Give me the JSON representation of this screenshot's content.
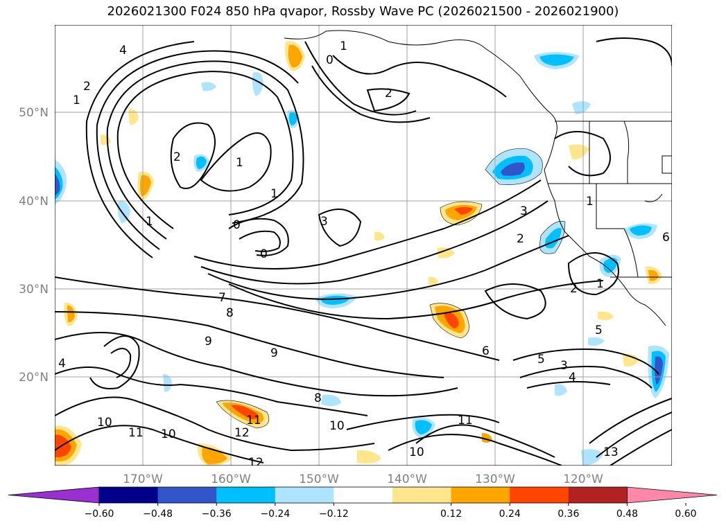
{
  "title": "2026021300 F024 850 hPa qvapor, Rossby Wave PC (2026021500 - 2026021900)",
  "lat_labels": [
    "50°N",
    "40°N",
    "30°N",
    "20°N"
  ],
  "lon_labels": [
    "170°W",
    "160°W",
    "150°W",
    "140°W",
    "130°W",
    "120°W"
  ],
  "colorbar": {
    "ticks": [
      "−0.60",
      "−0.48",
      "−0.36",
      "−0.24",
      "−0.12",
      "0.12",
      "0.24",
      "0.36",
      "0.48",
      "0.60"
    ],
    "colors": [
      "#9b30d0",
      "#00008b",
      "#3355cc",
      "#00bfff",
      "#aee4ff",
      "#ffffff",
      "#ffe68c",
      "#ffa500",
      "#ff4500",
      "#b22222",
      "#ff88aa"
    ]
  },
  "contour_labels": [
    "1",
    "2",
    "4",
    "0",
    "1",
    "2",
    "2",
    "1",
    "1",
    "1",
    "0",
    "0",
    "3",
    "3",
    "2",
    "1",
    "2",
    "5",
    "3",
    "4",
    "5",
    "7",
    "8",
    "9",
    "9",
    "8",
    "10",
    "10",
    "11",
    "11",
    "12",
    "12",
    "13",
    "10",
    "10",
    "11",
    "6",
    "6",
    "4",
    "1"
  ],
  "fill_colors": {
    "neg_light": "#aee4ff",
    "neg_mid": "#00bfff",
    "neg_dark": "#3355cc",
    "pos_light": "#ffe68c",
    "pos_mid": "#ffa500",
    "pos_dark": "#ff4500"
  }
}
